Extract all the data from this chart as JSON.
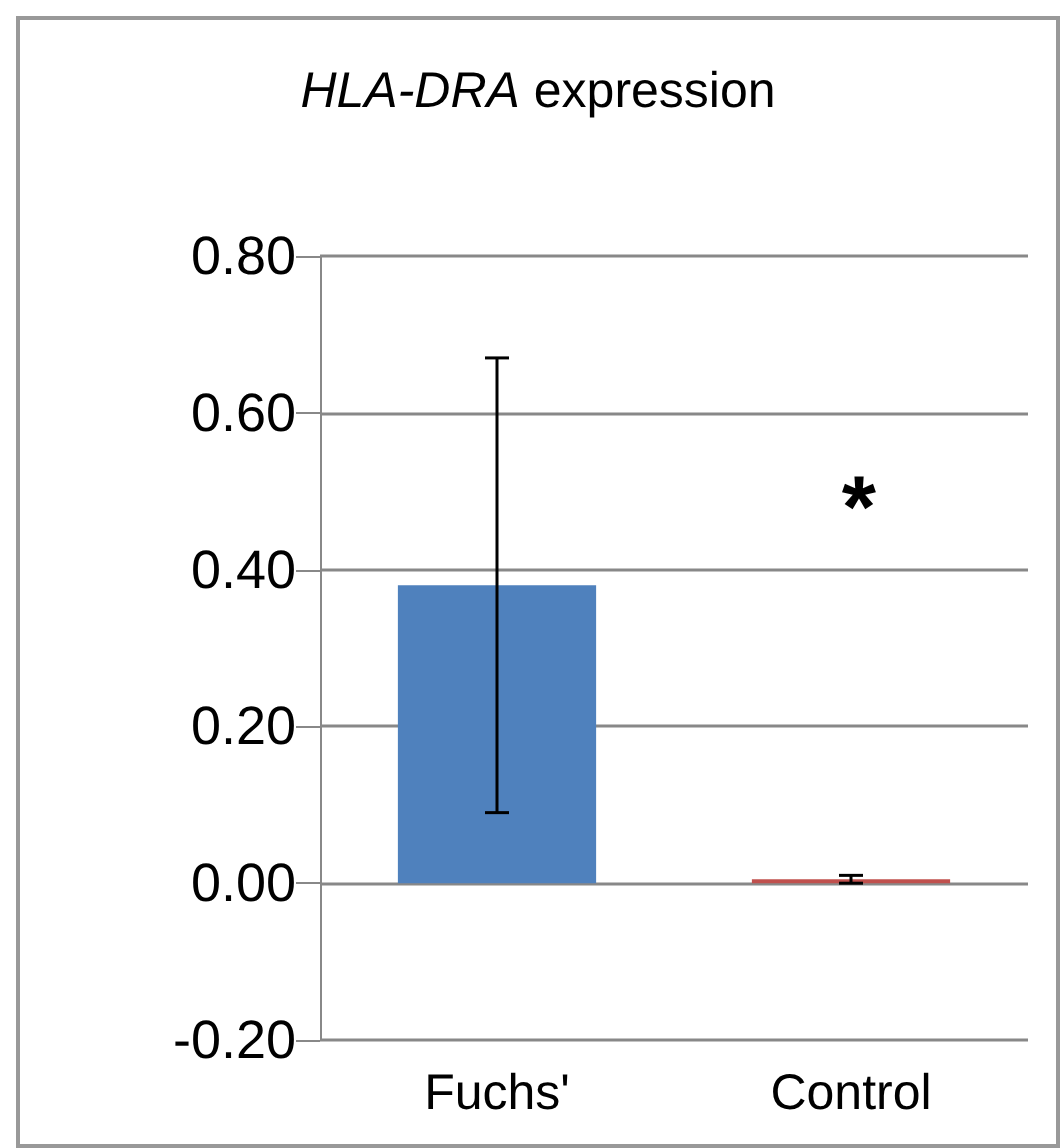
{
  "chart_data": {
    "type": "bar",
    "title": "HLA-DRA expression",
    "categories": [
      "Fuchs'",
      "Control"
    ],
    "values": [
      0.38,
      0.005
    ],
    "colors": [
      "#4f81bd",
      "#c0504d"
    ],
    "errors": [
      [
        0.09,
        0.67
      ],
      [
        0.0,
        0.01
      ]
    ],
    "ylim": [
      -0.2,
      0.8
    ],
    "yticks": [
      {
        "value": -0.2,
        "label": "-0.20"
      },
      {
        "value": 0,
        "label": "0.00"
      },
      {
        "value": 0.2,
        "label": "0.20"
      },
      {
        "value": 0.4,
        "label": "0.40"
      },
      {
        "value": 0.6,
        "label": "0.60"
      },
      {
        "value": 0.8,
        "label": "0.80"
      }
    ],
    "grid": "y",
    "annotations": [
      "*"
    ]
  }
}
